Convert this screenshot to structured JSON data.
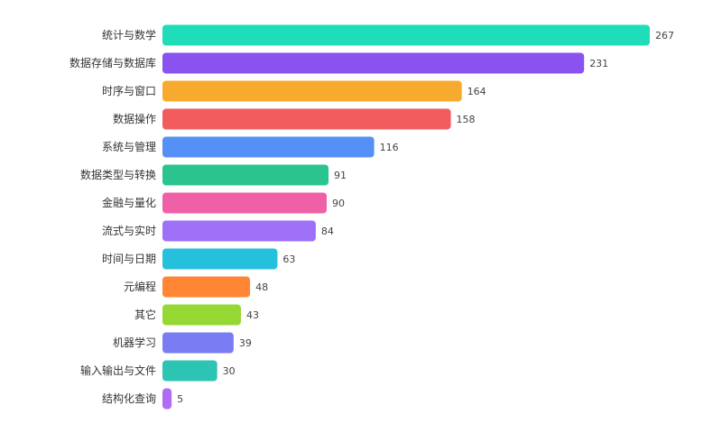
{
  "chart_data": {
    "type": "bar",
    "orientation": "horizontal",
    "categories": [
      "统计与数学",
      "数据存储与数据库",
      "时序与窗口",
      "数据操作",
      "系统与管理",
      "数据类型与转换",
      "金融与量化",
      "流式与实时",
      "时间与日期",
      "元编程",
      "其它",
      "机器学习",
      "输入输出与文件",
      "结构化查询"
    ],
    "values": [
      267,
      231,
      164,
      158,
      116,
      91,
      90,
      84,
      63,
      48,
      43,
      39,
      30,
      5
    ],
    "colors": [
      "#20DDBA",
      "#8A52EE",
      "#F8AA2E",
      "#F25C5E",
      "#5590F6",
      "#2CC48E",
      "#F060A6",
      "#9E70F8",
      "#24C0DC",
      "#FF8634",
      "#96D833",
      "#7A7CF4",
      "#2EC4B4",
      "#B06CF4"
    ],
    "title": "",
    "xlabel": "",
    "ylabel": "",
    "xlim": [
      0,
      267
    ],
    "grid": false,
    "legend": "none",
    "data_labels": true
  }
}
